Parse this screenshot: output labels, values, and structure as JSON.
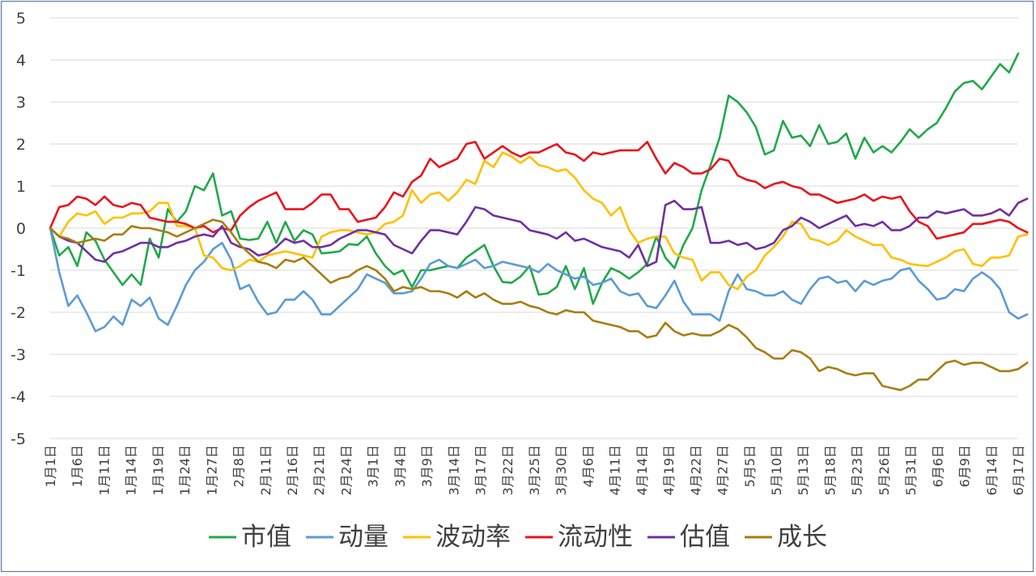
{
  "chart_data": {
    "type": "line",
    "title": "",
    "xlabel": "",
    "ylabel": "",
    "ylim": [
      -5,
      5
    ],
    "yticks": [
      5,
      4,
      3,
      2,
      1,
      0,
      -1,
      -2,
      -3,
      -4,
      -5
    ],
    "grid": "horizontal",
    "legend": "bottom-center",
    "x_tick_labels": [
      "1月1日",
      "1月6日",
      "1月11日",
      "1月14日",
      "1月19日",
      "1月24日",
      "1月27日",
      "2月8日",
      "2月11日",
      "2月16日",
      "2月21日",
      "2月24日",
      "3月1日",
      "3月4日",
      "3月9日",
      "3月14日",
      "3月17日",
      "3月22日",
      "3月25日",
      "3月30日",
      "4月6日",
      "4月11日",
      "4月14日",
      "4月19日",
      "4月22日",
      "4月27日",
      "5月5日",
      "5月10日",
      "5月13日",
      "5月18日",
      "5月23日",
      "5月26日",
      "5月31日",
      "6月6日",
      "6月9日",
      "6月14日",
      "6月17日"
    ],
    "series": [
      {
        "name": "市值",
        "color": "#22a84a",
        "values": [
          0,
          -0.65,
          -0.45,
          -0.9,
          -0.1,
          -0.3,
          -0.75,
          -1.05,
          -1.35,
          -1.1,
          -1.35,
          -0.25,
          -0.7,
          0.45,
          0.15,
          0.4,
          1.0,
          0.9,
          1.3,
          0.3,
          0.4,
          -0.25,
          -0.28,
          -0.25,
          0.15,
          -0.35,
          0.15,
          -0.3,
          -0.05,
          -0.15,
          -0.6,
          -0.58,
          -0.55,
          -0.38,
          -0.4,
          -0.2,
          -0.6,
          -0.9,
          -1.1,
          -1.0,
          -1.4,
          -1.0,
          -1.0,
          -0.95,
          -0.9,
          -0.95,
          -0.7,
          -0.55,
          -0.4,
          -0.9,
          -1.28,
          -1.3,
          -1.15,
          -0.9,
          -1.58,
          -1.55,
          -1.4,
          -0.9,
          -1.45,
          -0.95,
          -1.8,
          -1.3,
          -0.95,
          -1.05,
          -1.2,
          -1.05,
          -0.85,
          -0.2,
          -0.7,
          -0.95,
          -0.4,
          0.0,
          0.9,
          1.5,
          2.15,
          3.15,
          3.0,
          2.75,
          2.4,
          1.75,
          1.85,
          2.55,
          2.15,
          2.2,
          1.95,
          2.45,
          2.0,
          2.05,
          2.25,
          1.65,
          2.15,
          1.8,
          1.95,
          1.8,
          2.05,
          2.35,
          2.15,
          2.35,
          2.5,
          2.85,
          3.25,
          3.45,
          3.5,
          3.3,
          3.6,
          3.9,
          3.7,
          4.15
        ]
      },
      {
        "name": "动量",
        "color": "#5b9bd5",
        "values": [
          0,
          -1.05,
          -1.85,
          -1.6,
          -2.0,
          -2.45,
          -2.35,
          -2.1,
          -2.3,
          -1.7,
          -1.85,
          -1.65,
          -2.15,
          -2.3,
          -1.85,
          -1.35,
          -1.0,
          -0.8,
          -0.5,
          -0.35,
          -0.75,
          -1.45,
          -1.35,
          -1.75,
          -2.05,
          -2.0,
          -1.7,
          -1.7,
          -1.5,
          -1.7,
          -2.05,
          -2.05,
          -1.85,
          -1.65,
          -1.45,
          -1.1,
          -1.2,
          -1.3,
          -1.55,
          -1.55,
          -1.5,
          -1.2,
          -0.85,
          -0.75,
          -0.9,
          -0.95,
          -0.85,
          -0.75,
          -0.95,
          -0.9,
          -0.8,
          -0.85,
          -0.9,
          -0.95,
          -1.05,
          -0.85,
          -1.0,
          -1.1,
          -1.2,
          -1.15,
          -1.35,
          -1.3,
          -1.2,
          -1.5,
          -1.6,
          -1.55,
          -1.85,
          -1.9,
          -1.6,
          -1.25,
          -1.75,
          -2.05,
          -2.05,
          -2.05,
          -2.2,
          -1.5,
          -1.1,
          -1.45,
          -1.5,
          -1.6,
          -1.6,
          -1.5,
          -1.7,
          -1.8,
          -1.45,
          -1.2,
          -1.15,
          -1.3,
          -1.25,
          -1.5,
          -1.25,
          -1.35,
          -1.25,
          -1.2,
          -1.0,
          -0.95,
          -1.25,
          -1.45,
          -1.7,
          -1.65,
          -1.45,
          -1.5,
          -1.2,
          -1.05,
          -1.2,
          -1.45,
          -2.0,
          -2.15,
          -2.05
        ]
      },
      {
        "name": "波动率",
        "color": "#ffc000",
        "values": [
          0,
          -0.2,
          0.15,
          0.35,
          0.3,
          0.4,
          0.1,
          0.25,
          0.25,
          0.35,
          0.35,
          0.4,
          0.6,
          0.6,
          0.05,
          0.05,
          0.0,
          -0.65,
          -0.7,
          -0.95,
          -1.0,
          -0.9,
          -0.75,
          -0.8,
          -0.65,
          -0.6,
          -0.55,
          -0.6,
          -0.65,
          -0.7,
          -0.2,
          -0.1,
          -0.05,
          -0.05,
          -0.1,
          -0.15,
          -0.1,
          0.1,
          0.15,
          0.3,
          0.9,
          0.6,
          0.8,
          0.85,
          0.65,
          0.85,
          1.15,
          1.05,
          1.6,
          1.45,
          1.8,
          1.7,
          1.55,
          1.7,
          1.5,
          1.45,
          1.35,
          1.4,
          1.2,
          0.9,
          0.7,
          0.6,
          0.3,
          0.5,
          -0.05,
          -0.35,
          -0.25,
          -0.2,
          -0.2,
          -0.6,
          -0.7,
          -0.75,
          -1.25,
          -1.05,
          -1.05,
          -1.35,
          -1.45,
          -1.15,
          -1.0,
          -0.65,
          -0.45,
          -0.2,
          0.15,
          0.1,
          -0.25,
          -0.3,
          -0.4,
          -0.3,
          -0.05,
          -0.2,
          -0.3,
          -0.4,
          -0.4,
          -0.7,
          -0.75,
          -0.85,
          -0.88,
          -0.9,
          -0.8,
          -0.7,
          -0.55,
          -0.5,
          -0.85,
          -0.9,
          -0.7,
          -0.7,
          -0.65,
          -0.2,
          -0.15
        ]
      },
      {
        "name": "流动性",
        "color": "#e8141c",
        "values": [
          0,
          0.5,
          0.55,
          0.75,
          0.7,
          0.55,
          0.75,
          0.55,
          0.5,
          0.6,
          0.55,
          0.25,
          0.2,
          0.15,
          0.15,
          0.1,
          0.0,
          0.05,
          -0.1,
          0.0,
          -0.05,
          0.3,
          0.5,
          0.65,
          0.75,
          0.85,
          0.45,
          0.45,
          0.45,
          0.6,
          0.8,
          0.8,
          0.45,
          0.45,
          0.15,
          0.2,
          0.25,
          0.5,
          0.85,
          0.75,
          1.1,
          1.25,
          1.65,
          1.45,
          1.55,
          1.65,
          2.0,
          2.05,
          1.65,
          1.8,
          1.95,
          1.8,
          1.7,
          1.8,
          1.8,
          1.9,
          2.0,
          1.8,
          1.75,
          1.6,
          1.8,
          1.75,
          1.8,
          1.85,
          1.85,
          1.85,
          2.05,
          1.65,
          1.3,
          1.55,
          1.45,
          1.3,
          1.3,
          1.4,
          1.65,
          1.6,
          1.25,
          1.15,
          1.1,
          0.95,
          1.05,
          1.1,
          1.0,
          0.95,
          0.8,
          0.8,
          0.7,
          0.6,
          0.65,
          0.7,
          0.8,
          0.65,
          0.75,
          0.7,
          0.75,
          0.4,
          0.15,
          0.05,
          -0.25,
          -0.2,
          -0.15,
          -0.1,
          0.1,
          0.1,
          0.15,
          0.2,
          0.15,
          0.0,
          -0.1
        ]
      },
      {
        "name": "估值",
        "color": "#7030a0",
        "values": [
          0,
          -0.2,
          -0.3,
          -0.35,
          -0.55,
          -0.75,
          -0.8,
          -0.6,
          -0.55,
          -0.45,
          -0.35,
          -0.35,
          -0.45,
          -0.45,
          -0.35,
          -0.3,
          -0.2,
          -0.15,
          -0.2,
          0.05,
          -0.35,
          -0.45,
          -0.5,
          -0.65,
          -0.6,
          -0.45,
          -0.25,
          -0.35,
          -0.3,
          -0.45,
          -0.45,
          -0.4,
          -0.25,
          -0.15,
          -0.05,
          -0.05,
          -0.1,
          -0.15,
          -0.4,
          -0.5,
          -0.6,
          -0.3,
          -0.05,
          -0.05,
          -0.1,
          -0.15,
          0.15,
          0.5,
          0.45,
          0.3,
          0.25,
          0.2,
          0.15,
          -0.05,
          -0.1,
          -0.15,
          -0.25,
          -0.1,
          -0.3,
          -0.25,
          -0.35,
          -0.45,
          -0.5,
          -0.55,
          -0.7,
          -0.4,
          -0.9,
          -0.8,
          0.55,
          0.65,
          0.45,
          0.45,
          0.5,
          -0.35,
          -0.35,
          -0.3,
          -0.4,
          -0.35,
          -0.5,
          -0.45,
          -0.35,
          -0.05,
          0.05,
          0.25,
          0.15,
          0.0,
          0.1,
          0.2,
          0.3,
          0.05,
          0.1,
          0.05,
          0.15,
          -0.05,
          -0.05,
          0.05,
          0.25,
          0.25,
          0.4,
          0.35,
          0.4,
          0.45,
          0.3,
          0.3,
          0.35,
          0.45,
          0.3,
          0.6,
          0.7
        ]
      },
      {
        "name": "成长",
        "color": "#a87d10",
        "values": [
          0,
          -0.2,
          -0.25,
          -0.35,
          -0.3,
          -0.25,
          -0.3,
          -0.15,
          -0.15,
          0.05,
          0.0,
          0.0,
          -0.05,
          -0.1,
          -0.2,
          -0.1,
          0.0,
          0.1,
          0.2,
          0.15,
          -0.1,
          -0.4,
          -0.6,
          -0.8,
          -0.85,
          -0.95,
          -0.75,
          -0.8,
          -0.7,
          -0.9,
          -1.1,
          -1.3,
          -1.2,
          -1.15,
          -1.0,
          -0.9,
          -1.0,
          -1.2,
          -1.5,
          -1.4,
          -1.45,
          -1.4,
          -1.5,
          -1.5,
          -1.55,
          -1.65,
          -1.5,
          -1.65,
          -1.55,
          -1.7,
          -1.8,
          -1.8,
          -1.75,
          -1.85,
          -1.9,
          -2.0,
          -2.05,
          -1.95,
          -2.0,
          -2.0,
          -2.2,
          -2.25,
          -2.3,
          -2.35,
          -2.45,
          -2.45,
          -2.6,
          -2.55,
          -2.25,
          -2.45,
          -2.55,
          -2.5,
          -2.55,
          -2.55,
          -2.45,
          -2.3,
          -2.4,
          -2.6,
          -2.85,
          -2.95,
          -3.1,
          -3.1,
          -2.9,
          -2.95,
          -3.1,
          -3.4,
          -3.3,
          -3.35,
          -3.45,
          -3.5,
          -3.45,
          -3.45,
          -3.75,
          -3.8,
          -3.85,
          -3.75,
          -3.6,
          -3.6,
          -3.4,
          -3.2,
          -3.15,
          -3.25,
          -3.2,
          -3.2,
          -3.3,
          -3.4,
          -3.4,
          -3.35,
          -3.2
        ]
      }
    ]
  }
}
